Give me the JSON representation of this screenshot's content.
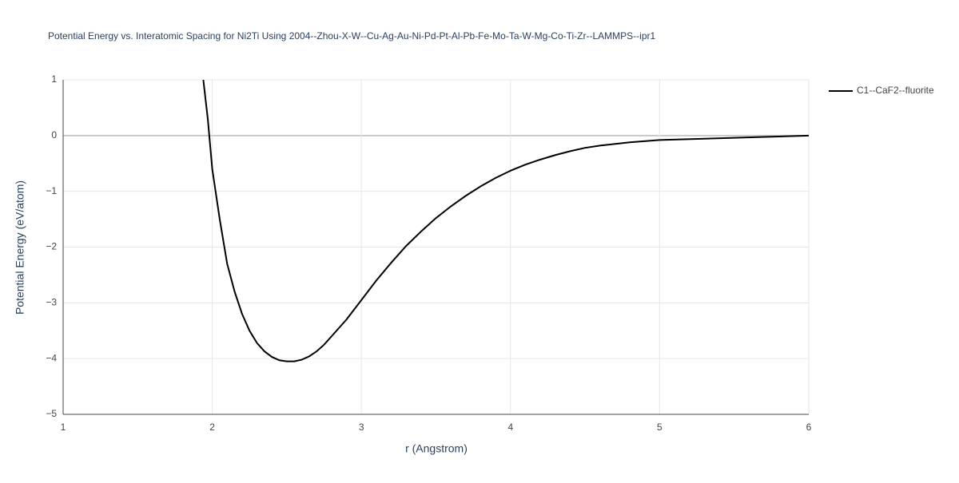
{
  "chart_data": {
    "type": "line",
    "title": "Potential Energy vs. Interatomic Spacing for Ni2Ti Using 2004--Zhou-X-W--Cu-Ag-Au-Ni-Pd-Pt-Al-Pb-Fe-Mo-Ta-W-Mg-Co-Ti-Zr--LAMMPS--ipr1",
    "x_label": "r (Angstrom)",
    "y_label": "Potential Energy (eV/atom)",
    "x": [
      1.94,
      1.97,
      2.0,
      2.05,
      2.1,
      2.15,
      2.2,
      2.25,
      2.3,
      2.35,
      2.4,
      2.45,
      2.5,
      2.55,
      2.6,
      2.65,
      2.7,
      2.75,
      2.8,
      2.9,
      3.0,
      3.1,
      3.2,
      3.3,
      3.4,
      3.5,
      3.6,
      3.7,
      3.8,
      3.9,
      4.0,
      4.1,
      4.2,
      4.3,
      4.4,
      4.5,
      4.6,
      4.8,
      5.0,
      5.5,
      6.0
    ],
    "series": [
      {
        "name": "C1--CaF2--fluorite",
        "color": "#000000",
        "values": [
          1.0,
          0.3,
          -0.6,
          -1.5,
          -2.3,
          -2.8,
          -3.2,
          -3.5,
          -3.72,
          -3.87,
          -3.97,
          -4.03,
          -4.05,
          -4.05,
          -4.02,
          -3.96,
          -3.87,
          -3.75,
          -3.6,
          -3.3,
          -2.95,
          -2.6,
          -2.28,
          -1.98,
          -1.72,
          -1.48,
          -1.27,
          -1.08,
          -0.91,
          -0.76,
          -0.63,
          -0.52,
          -0.43,
          -0.35,
          -0.28,
          -0.22,
          -0.18,
          -0.12,
          -0.08,
          -0.04,
          0.0
        ]
      }
    ],
    "xlim": [
      1,
      6
    ],
    "xticks": [
      1,
      2,
      3,
      4,
      5,
      6
    ],
    "ylim": [
      -5,
      1
    ],
    "yticks": [
      {
        "value": -5,
        "label": "−5"
      },
      {
        "value": -4,
        "label": "−4"
      },
      {
        "value": -3,
        "label": "−3"
      },
      {
        "value": -2,
        "label": "−2"
      },
      {
        "value": -1,
        "label": "−1"
      },
      0,
      1
    ],
    "grid": true,
    "legend": "right"
  }
}
